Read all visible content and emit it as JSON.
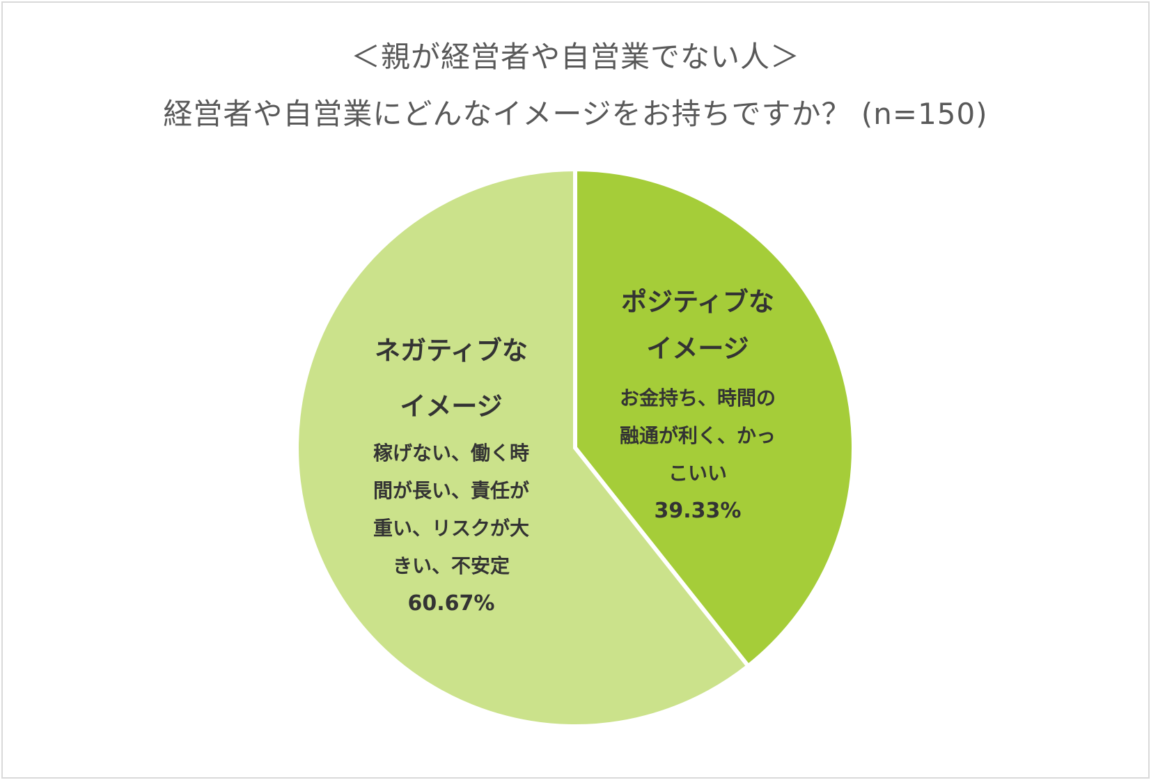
{
  "title": "＜親が経営者や自営業でない人＞",
  "subtitle": "経営者や自営業にどんなイメージをお持ちですか？ (n=150)",
  "chart_data": {
    "type": "pie",
    "start_angle": "12 o'clock, clockwise",
    "slices": [
      {
        "label": "ポジティブなイメージ",
        "label_lines": [
          "ポジティブな",
          "イメージ"
        ],
        "description_lines": [
          "お金持ち、時間の",
          "融通が利く、かっ",
          "こいい"
        ],
        "value": 39.33,
        "value_label": "39.33%",
        "color": "#a5cd39"
      },
      {
        "label": "ネガティブなイメージ",
        "label_lines": [
          "ネガティブな",
          "イメージ"
        ],
        "description_lines": [
          "稼げない、働く時",
          "間が長い、責任が",
          "重い、リスクが大",
          "きい、不安定"
        ],
        "value": 60.67,
        "value_label": "60.67%",
        "color": "#cbe28b"
      }
    ],
    "separator_color": "#ffffff"
  }
}
